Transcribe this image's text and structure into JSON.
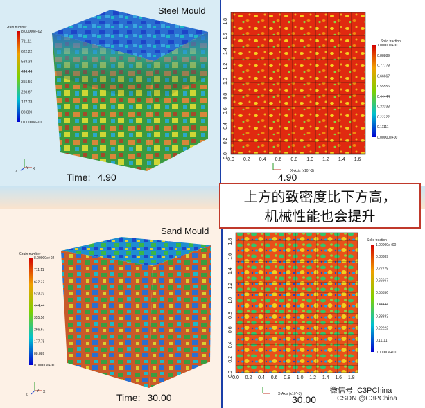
{
  "top_left": {
    "title": "Steel Mould",
    "time_label": "Time:",
    "time_value": "4.90",
    "legend": {
      "title": "Grain number",
      "ticks": [
        "8.00000e+02",
        "711.11",
        "622.22",
        "533.33",
        "444.44",
        "355.56",
        "266.67",
        "177.78",
        "88.889",
        "0.00000e+00"
      ]
    }
  },
  "top_right": {
    "time_value": "4.90",
    "x_axis_label": "X-Axis (x10^-3)",
    "x_ticks": [
      "0.0",
      "0.2",
      "0.4",
      "0.6",
      "0.8",
      "1.0",
      "1.2",
      "1.4",
      "1.6"
    ],
    "y_ticks": [
      "0.0",
      "0.2",
      "0.4",
      "0.6",
      "0.8",
      "1.0",
      "1.2",
      "1.4",
      "1.6",
      "1.8"
    ],
    "legend": {
      "title": "Solid fraction",
      "ticks": [
        "1.00000e+00",
        "0.88889",
        "0.77778",
        "0.66667",
        "0.55556",
        "0.44444",
        "0.33333",
        "0.22222",
        "0.11111",
        "0.00000e+00"
      ]
    }
  },
  "bottom_left": {
    "title": "Sand Mould",
    "time_label": "Time:",
    "time_value": "30.00",
    "legend": {
      "title": "Grain number",
      "ticks": [
        "8.00000e+02",
        "711.11",
        "622.22",
        "533.33",
        "444.44",
        "355.56",
        "266.67",
        "177.78",
        "88.889",
        "0.00000e+00"
      ]
    }
  },
  "bottom_right": {
    "time_value": "30.00",
    "x_axis_label": "X-Axis (x10^-3)",
    "x_ticks": [
      "0.0",
      "0.2",
      "0.4",
      "0.6",
      "0.8",
      "1.0",
      "1.2",
      "1.4",
      "1.6",
      "1.8"
    ],
    "y_ticks": [
      "0.0",
      "0.2",
      "0.4",
      "0.6",
      "0.8",
      "1.0",
      "1.2",
      "1.4",
      "1.6",
      "1.8"
    ],
    "legend": {
      "title": "Solid fraction",
      "ticks": [
        "1.00000e+00",
        "0.88889",
        "0.77778",
        "0.66667",
        "0.55556",
        "0.44444",
        "0.33333",
        "0.22222",
        "0.11111",
        "0.00000e+00"
      ]
    }
  },
  "callout": {
    "line1": "上方的致密度比下方高，",
    "line2": "机械性能也会提升"
  },
  "watermark": {
    "wechat": "微信号: C3PChina",
    "csdn": "CSDN @C3PChina"
  },
  "axis_triad": {
    "x": "X",
    "y": "Y",
    "z": "Z"
  }
}
